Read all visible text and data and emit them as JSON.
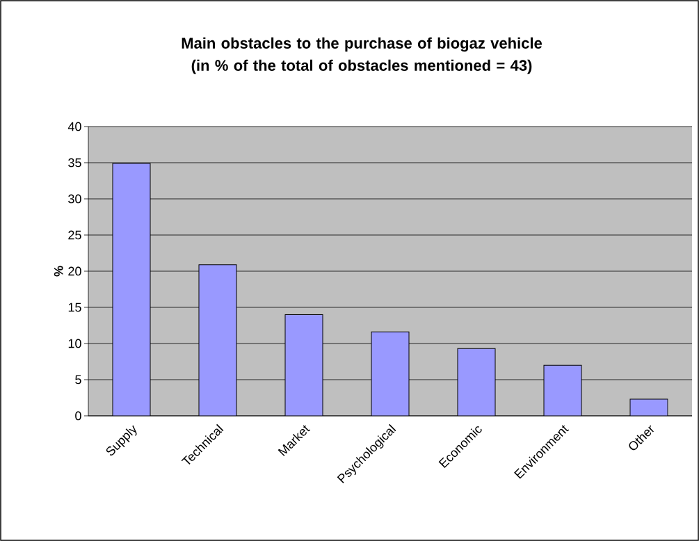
{
  "chart_data": {
    "type": "bar",
    "title": "Main obstacles to the purchase of biogaz vehicle (in % of the total of obstacles mentioned = 43)",
    "ylabel": "%",
    "categories": [
      "Supply",
      "Technical",
      "Market",
      "Psychological",
      "Economic",
      "Environment",
      "Other"
    ],
    "values": [
      34.9,
      20.9,
      14.0,
      11.6,
      9.3,
      7.0,
      2.3
    ],
    "color": "#9999ff",
    "ylim": [
      0,
      40
    ],
    "yticks": [
      0,
      5,
      10,
      15,
      20,
      25,
      30,
      35,
      40
    ],
    "grid": "y"
  }
}
